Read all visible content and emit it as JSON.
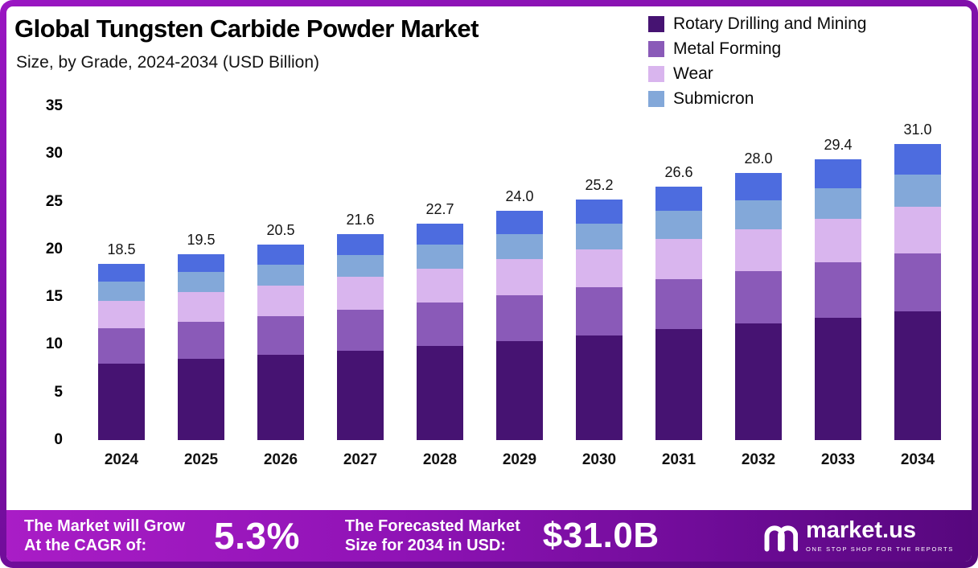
{
  "chart_data": {
    "type": "bar",
    "stacked": true,
    "title": "Global Tungsten Carbide Powder Market",
    "subtitle": "Size, by Grade, 2024-2034 (USD Billion)",
    "xlabel": "",
    "ylabel": "USD Billion",
    "ylim": [
      0,
      35
    ],
    "yticks": [
      0,
      5,
      10,
      15,
      20,
      25,
      30,
      35
    ],
    "grid": false,
    "legend_position": "top-right",
    "categories": [
      "2024",
      "2025",
      "2026",
      "2027",
      "2028",
      "2029",
      "2030",
      "2031",
      "2032",
      "2033",
      "2034"
    ],
    "totals": [
      "18.5",
      "19.5",
      "20.5",
      "21.6",
      "22.7",
      "24.0",
      "25.2",
      "26.6",
      "28.0",
      "29.4",
      "31.0"
    ],
    "series": [
      {
        "name": "Rotary Drilling and Mining",
        "color": "#461372",
        "values": [
          8.0,
          8.5,
          8.9,
          9.4,
          9.9,
          10.4,
          11.0,
          11.6,
          12.2,
          12.8,
          13.5
        ]
      },
      {
        "name": "Metal Forming",
        "color": "#8a5ab8",
        "values": [
          3.7,
          3.9,
          4.1,
          4.3,
          4.5,
          4.8,
          5.0,
          5.3,
          5.5,
          5.8,
          6.1
        ]
      },
      {
        "name": "Wear",
        "color": "#d9b5ee",
        "values": [
          2.9,
          3.1,
          3.2,
          3.4,
          3.6,
          3.8,
          4.0,
          4.2,
          4.4,
          4.6,
          4.9
        ]
      },
      {
        "name": "Submicron",
        "color": "#83a8d9",
        "values": [
          2.0,
          2.1,
          2.2,
          2.3,
          2.5,
          2.6,
          2.7,
          2.9,
          3.0,
          3.2,
          3.3
        ]
      },
      {
        "name": "",
        "color": "#4d6cdf",
        "values": [
          1.9,
          1.9,
          2.1,
          2.2,
          2.2,
          2.4,
          2.5,
          2.6,
          2.9,
          3.0,
          3.2
        ]
      }
    ]
  },
  "footer": {
    "cagr_label_line1": "The Market will Grow",
    "cagr_label_line2": "At the CAGR of:",
    "cagr_value": "5.3%",
    "forecast_label_line1": "The Forecasted Market",
    "forecast_label_line2": "Size for 2034 in USD:",
    "forecast_value": "$31.0B",
    "brand_name": "market.us",
    "brand_tagline": "ONE STOP SHOP FOR THE REPORTS"
  },
  "colors": {
    "frame": "#7c0fa6",
    "footer_gradient_start": "#a91dc6",
    "footer_gradient_end": "#57077e",
    "text": "#111111",
    "background": "#ffffff"
  }
}
